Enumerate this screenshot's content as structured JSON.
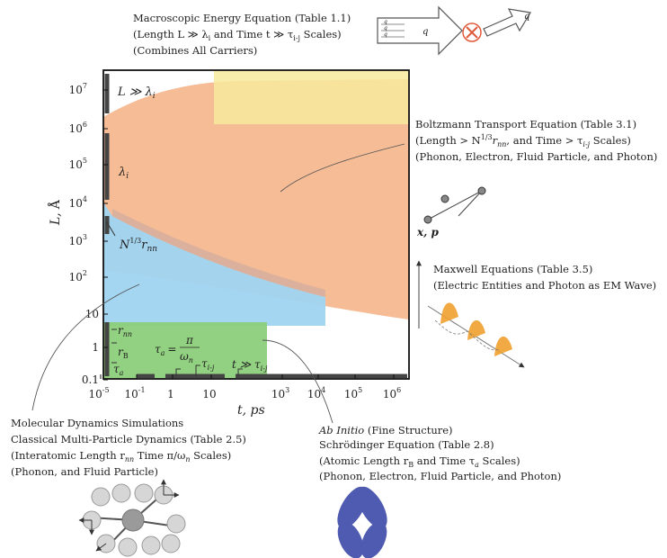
{
  "axes": {
    "x_label": "t, ps",
    "y_label_main": "L,",
    "y_label_unit": "Å",
    "y_ticks": [
      {
        "base": "10",
        "exp": "7"
      },
      {
        "base": "10",
        "exp": "6"
      },
      {
        "base": "10",
        "exp": "5"
      },
      {
        "base": "10",
        "exp": "4"
      },
      {
        "base": "10",
        "exp": "3"
      },
      {
        "base": "10",
        "exp": "2"
      },
      {
        "base": "10",
        "exp": ""
      },
      {
        "base": "1",
        "exp": ""
      },
      {
        "base": "0.1",
        "exp": ""
      }
    ],
    "x_ticks": [
      {
        "base": "10",
        "exp": "-5"
      },
      {
        "base": "10",
        "exp": "-1"
      },
      {
        "base": "1",
        "exp": ""
      },
      {
        "base": "10",
        "exp": ""
      },
      {
        "base": "10",
        "exp": "3"
      },
      {
        "base": "10",
        "exp": "4"
      },
      {
        "base": "10",
        "exp": "5"
      },
      {
        "base": "10",
        "exp": "6"
      }
    ]
  },
  "colors": {
    "yellow_region": "#f7ea9c",
    "orange_region": "#f5b58b",
    "blue_region": "#9fd4f1",
    "green_region": "#8ccf7a",
    "heat_arrow": "#e05a3a",
    "orbital": "#3c4aa8"
  },
  "plot_labels": {
    "mean_free_path": "λ",
    "mean_free_path_sub": "i",
    "large_length": "L ≫ λ",
    "large_length_sub": "i",
    "spacing_prefix": "N",
    "spacing_exp": "1/3",
    "spacing_r": "r",
    "spacing_sub": "nn",
    "r_nn": "r",
    "r_nn_sub": "nn",
    "r_b": "r",
    "r_b_sub": "B",
    "tau_a": "τ",
    "tau_a_sub": "a",
    "tau_a_eq": "τ",
    "tau_a_eq_sub": "a",
    "tau_eq_sign": "=",
    "pi": "π",
    "omega": "ω",
    "omega_sub": "n",
    "tau_ij": "τ",
    "tau_ij_sub": "i-j",
    "large_time": "t ≫ τ",
    "large_time_sub": "i-j"
  },
  "macroscopic": {
    "line1": "Macroscopic Energy Equation (Table 1.1)",
    "line2_a": "(Length L ≫ λ",
    "line2_a_sub": "i",
    "line2_b": " and Time t ≫ τ",
    "line2_b_sub": "i-j",
    "line2_c": " Scales)",
    "line3": "(Combines All Carriers)",
    "arrow_q": "q",
    "arrow_q2": "q",
    "arrow_qs": [
      "q",
      "q",
      "q"
    ]
  },
  "boltzmann": {
    "line1": "Boltzmann Transport Equation (Table 3.1)",
    "line2_a": "(Length > N",
    "line2_a_exp": "1/3",
    "line2_b": "r",
    "line2_b_sub": "nn",
    "line2_c": ", and Time > τ",
    "line2_c_sub": "i-j",
    "line2_d": " Scales)",
    "line3": "(Phonon, Electron, Fluid Particle, and Photon)",
    "particle_label": "x, p"
  },
  "maxwell": {
    "line1": "Maxwell Equations (Table 3.5)",
    "line2": "(Electric Entities and Photon as EM Wave)"
  },
  "molecular": {
    "line1": "Molecular Dynamics Simulations",
    "line2": "Classical Multi-Particle Dynamics (Table 2.5)",
    "line3_a": "(Interatomic Length r",
    "line3_a_sub": "nn",
    "line3_b": " Time π/ω",
    "line3_b_sub": "n",
    "line3_c": " Scales)",
    "line4": "(Phonon, and Fluid Particle)"
  },
  "abinitio": {
    "line1_a": "Ab Initio",
    "line1_b": " (Fine Structure)",
    "line2": "Schrödinger Equation (Table 2.8)",
    "line3_a": "(Atomic Length r",
    "line3_a_sub": "B",
    "line3_b": " and Time τ",
    "line3_b_sub": "a",
    "line3_c": " Scales)",
    "line4": "(Phonon, Electron, Fluid Particle, and Photon)"
  }
}
